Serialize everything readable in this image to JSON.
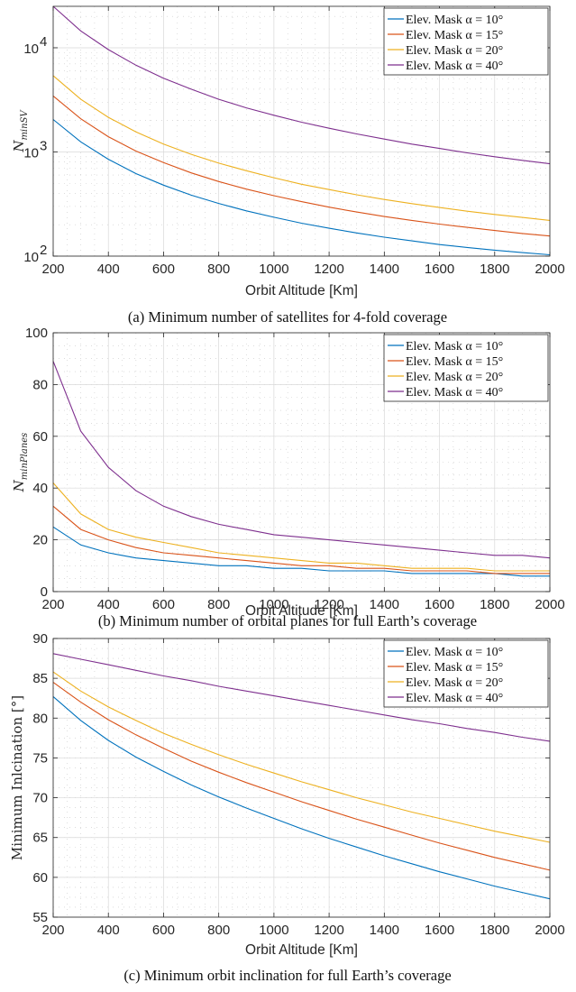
{
  "chart_data": [
    {
      "type": "line",
      "caption": "(a) Minimum number of satellites for 4-fold coverage",
      "xlabel": "Orbit Altitude [Km]",
      "ylabel": "N_minSV",
      "yscale": "log",
      "xlim": [
        200,
        2000
      ],
      "ylim": [
        100,
        25000
      ],
      "xticks": [
        "200",
        "400",
        "600",
        "800",
        "1000",
        "1200",
        "1400",
        "1600",
        "1800",
        "2000"
      ],
      "yticks": [
        {
          "v": 100,
          "label": "10",
          "exp": "2"
        },
        {
          "v": 1000,
          "label": "10",
          "exp": "3"
        },
        {
          "v": 10000,
          "label": "10",
          "exp": "4"
        }
      ],
      "grid": true,
      "legend_position": "top-right",
      "x": [
        200,
        300,
        400,
        500,
        600,
        700,
        800,
        900,
        1000,
        1100,
        1200,
        1300,
        1400,
        1500,
        1600,
        1700,
        1800,
        1900,
        2000
      ],
      "series": [
        {
          "name": "Elev. Mask α = 10°",
          "color": "#0072BD",
          "values": [
            2050,
            1250,
            850,
            620,
            480,
            385,
            320,
            272,
            236,
            207,
            185,
            167,
            152,
            140,
            129,
            121,
            114,
            108,
            103
          ]
        },
        {
          "name": "Elev. Mask α = 15°",
          "color": "#D95319",
          "values": [
            3450,
            2080,
            1400,
            1020,
            790,
            630,
            520,
            440,
            380,
            333,
            295,
            265,
            240,
            220,
            203,
            189,
            176,
            165,
            156
          ]
        },
        {
          "name": "Elev. Mask α = 20°",
          "color": "#EDB120",
          "values": [
            5400,
            3200,
            2150,
            1560,
            1190,
            950,
            780,
            660,
            565,
            490,
            435,
            388,
            350,
            319,
            293,
            270,
            251,
            235,
            220
          ]
        },
        {
          "name": "Elev. Mask α = 40°",
          "color": "#7E2F8E",
          "values": [
            25000,
            14500,
            9600,
            6800,
            5100,
            4000,
            3200,
            2650,
            2250,
            1930,
            1690,
            1490,
            1330,
            1190,
            1080,
            980,
            900,
            830,
            770
          ]
        }
      ]
    },
    {
      "type": "line",
      "caption": "(b) Minimum number of orbital planes for full Earth’s coverage",
      "xlabel": "Orbit Altitude [Km]",
      "ylabel": "N_minPlanes",
      "xlim": [
        200,
        2000
      ],
      "ylim": [
        0,
        100
      ],
      "xticks": [
        "200",
        "400",
        "600",
        "800",
        "1000",
        "1200",
        "1400",
        "1600",
        "1800",
        "2000"
      ],
      "yticks": [
        "0",
        "20",
        "40",
        "60",
        "80",
        "100"
      ],
      "grid": true,
      "legend_position": "top-right",
      "x": [
        200,
        300,
        400,
        500,
        600,
        700,
        800,
        900,
        1000,
        1100,
        1200,
        1300,
        1400,
        1500,
        1600,
        1700,
        1800,
        1900,
        2000
      ],
      "series": [
        {
          "name": "Elev. Mask α = 10°",
          "color": "#0072BD",
          "values": [
            25,
            18,
            15,
            13,
            12,
            11,
            10,
            10,
            9,
            9,
            8,
            8,
            8,
            7,
            7,
            7,
            7,
            6,
            6
          ]
        },
        {
          "name": "Elev. Mask α = 15°",
          "color": "#D95319",
          "values": [
            33,
            24,
            20,
            17,
            15,
            14,
            13,
            12,
            11,
            10,
            10,
            9,
            9,
            8,
            8,
            8,
            7,
            7,
            7
          ]
        },
        {
          "name": "Elev. Mask α = 20°",
          "color": "#EDB120",
          "values": [
            42,
            30,
            24,
            21,
            19,
            17,
            15,
            14,
            13,
            12,
            11,
            11,
            10,
            9,
            9,
            9,
            8,
            8,
            8
          ]
        },
        {
          "name": "Elev. Mask α = 40°",
          "color": "#7E2F8E",
          "values": [
            89,
            62,
            48,
            39,
            33,
            29,
            26,
            24,
            22,
            21,
            20,
            19,
            18,
            17,
            16,
            15,
            14,
            14,
            13
          ]
        }
      ]
    },
    {
      "type": "line",
      "caption": "(c) Minimum orbit inclination for full Earth’s coverage",
      "xlabel": "Orbit Altitude [Km]",
      "ylabel": "Minimum Inlcination [°]",
      "xlim": [
        200,
        2000
      ],
      "ylim": [
        55,
        90
      ],
      "xticks": [
        "200",
        "400",
        "600",
        "800",
        "1000",
        "1200",
        "1400",
        "1600",
        "1800",
        "2000"
      ],
      "yticks": [
        "55",
        "60",
        "65",
        "70",
        "75",
        "80",
        "85",
        "90"
      ],
      "grid": true,
      "legend_position": "top-right",
      "x": [
        200,
        300,
        400,
        500,
        600,
        700,
        800,
        900,
        1000,
        1100,
        1200,
        1300,
        1400,
        1500,
        1600,
        1700,
        1800,
        1900,
        2000
      ],
      "series": [
        {
          "name": "Elev. Mask α = 10°",
          "color": "#0072BD",
          "values": [
            82.7,
            79.7,
            77.2,
            75.1,
            73.3,
            71.6,
            70.1,
            68.7,
            67.4,
            66.1,
            64.9,
            63.8,
            62.7,
            61.7,
            60.7,
            59.8,
            58.9,
            58.1,
            57.3
          ]
        },
        {
          "name": "Elev. Mask α = 15°",
          "color": "#D95319",
          "values": [
            84.5,
            82.0,
            79.8,
            77.9,
            76.2,
            74.6,
            73.2,
            71.9,
            70.7,
            69.5,
            68.4,
            67.3,
            66.3,
            65.3,
            64.3,
            63.4,
            62.5,
            61.7,
            60.9
          ]
        },
        {
          "name": "Elev. Mask α = 20°",
          "color": "#EDB120",
          "values": [
            85.8,
            83.4,
            81.4,
            79.7,
            78.1,
            76.7,
            75.4,
            74.2,
            73.1,
            72.0,
            71.0,
            70.0,
            69.1,
            68.2,
            67.4,
            66.6,
            65.8,
            65.1,
            64.4
          ]
        },
        {
          "name": "Elev. Mask α = 40°",
          "color": "#7E2F8E",
          "values": [
            88.1,
            87.4,
            86.7,
            86.0,
            85.3,
            84.7,
            84.0,
            83.4,
            82.8,
            82.2,
            81.6,
            81.0,
            80.4,
            79.8,
            79.3,
            78.7,
            78.2,
            77.6,
            77.1
          ]
        }
      ]
    }
  ]
}
